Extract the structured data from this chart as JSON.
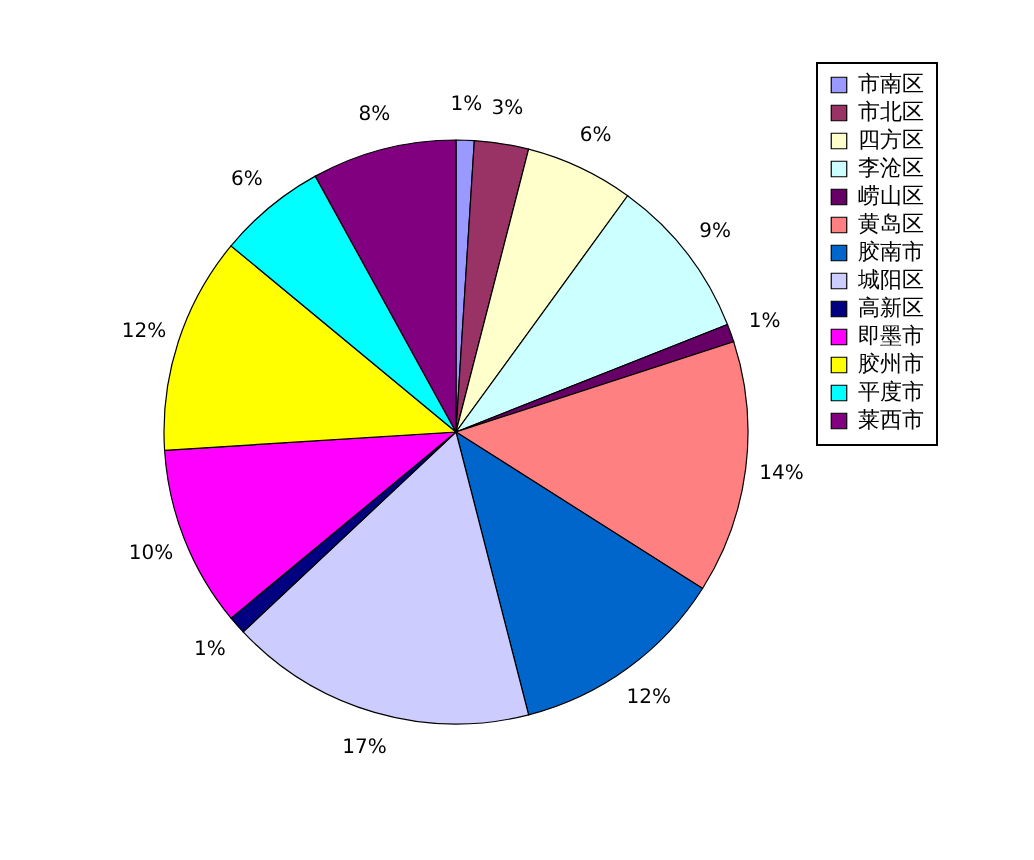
{
  "chart_data": {
    "type": "pie",
    "categories": [
      "市南区",
      "市北区",
      "四方区",
      "李沧区",
      "崂山区",
      "黄岛区",
      "胶南市",
      "城阳区",
      "高新区",
      "即墨市",
      "胶州市",
      "平度市",
      "莱西市"
    ],
    "values": [
      1,
      3,
      6,
      9,
      1,
      14,
      12,
      17,
      1,
      10,
      12,
      6,
      8
    ],
    "value_labels": [
      "1%",
      "3%",
      "6%",
      "9%",
      "1%",
      "14%",
      "12%",
      "17%",
      "1%",
      "10%",
      "12%",
      "6%",
      "8%"
    ],
    "colors": [
      "#9999ff",
      "#993366",
      "#ffffcc",
      "#ccffff",
      "#660066",
      "#ff8080",
      "#0066cc",
      "#ccccff",
      "#000080",
      "#ff00ff",
      "#ffff00",
      "#00ffff",
      "#800080"
    ],
    "legend": "right"
  }
}
